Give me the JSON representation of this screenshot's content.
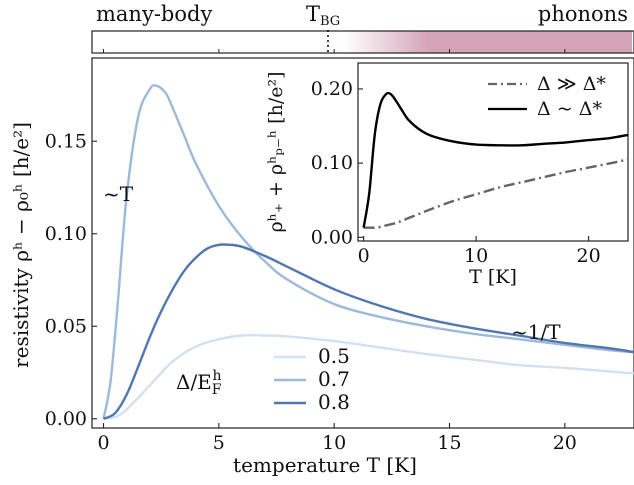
{
  "regime_bar": {
    "left_label": "many-body",
    "marker_label": "T",
    "marker_subscript": "BG",
    "right_label": "phonons",
    "shade_color": "#d4a3b6"
  },
  "chart_data": [
    {
      "type": "line",
      "xlabel": "temperature T [K]",
      "ylabel": "resistivity ρʰ − ρ₀ʰ [h/e²]",
      "xlim": [
        -0.5,
        23
      ],
      "ylim": [
        -0.005,
        0.195
      ],
      "xticks": [
        0,
        5,
        10,
        15,
        20
      ],
      "yticks": [
        0.0,
        0.05,
        0.1,
        0.15
      ],
      "xtick_labels": [
        "0",
        "5",
        "10",
        "15",
        "20"
      ],
      "ytick_labels": [
        "0.00",
        "0.05",
        "0.10",
        "0.15"
      ],
      "grid": false,
      "legend_title": "Δ/E_F^h",
      "legend_position": "lower-center",
      "annotations": [
        "~T",
        "~1/T"
      ],
      "series": [
        {
          "name": "0.5",
          "color": "#d3e0ef",
          "x": [
            0,
            0.5,
            1,
            2,
            3,
            4,
            5,
            6,
            7,
            8,
            10,
            12,
            14,
            16,
            18,
            20,
            22,
            23
          ],
          "y": [
            0.0,
            0.001,
            0.005,
            0.018,
            0.031,
            0.039,
            0.043,
            0.045,
            0.045,
            0.0445,
            0.042,
            0.0385,
            0.035,
            0.032,
            0.029,
            0.0275,
            0.0255,
            0.0245
          ]
        },
        {
          "name": "0.7",
          "color": "#9db9da",
          "x": [
            0,
            0.3,
            0.6,
            1,
            1.5,
            2,
            2.3,
            2.7,
            3,
            3.5,
            4,
            5,
            6,
            7,
            8,
            10,
            12,
            14,
            16,
            18,
            20,
            22,
            23
          ],
          "y": [
            0.0,
            0.02,
            0.06,
            0.12,
            0.163,
            0.178,
            0.18,
            0.176,
            0.168,
            0.153,
            0.138,
            0.115,
            0.098,
            0.085,
            0.075,
            0.062,
            0.055,
            0.05,
            0.046,
            0.043,
            0.04,
            0.037,
            0.036
          ]
        },
        {
          "name": "0.8",
          "color": "#5177b1",
          "x": [
            0,
            0.5,
            1,
            1.5,
            2,
            2.5,
            3,
            3.5,
            4,
            4.5,
            5,
            5.5,
            6,
            7,
            8,
            10,
            12,
            14,
            16,
            18,
            20,
            22,
            23
          ],
          "y": [
            0.0,
            0.003,
            0.013,
            0.028,
            0.044,
            0.058,
            0.07,
            0.08,
            0.087,
            0.092,
            0.094,
            0.094,
            0.093,
            0.088,
            0.082,
            0.07,
            0.061,
            0.054,
            0.049,
            0.045,
            0.041,
            0.038,
            0.036
          ]
        }
      ]
    },
    {
      "type": "line",
      "xlabel": "T [K]",
      "ylabel": "ρʰ₊ + ρʰₚ₋ʰ [h/e²]",
      "xlim": [
        -0.5,
        23.5
      ],
      "ylim": [
        -0.005,
        0.235
      ],
      "xticks": [
        0,
        10,
        20
      ],
      "yticks": [
        0.0,
        0.1,
        0.2
      ],
      "xtick_labels": [
        "0",
        "10",
        "20"
      ],
      "ytick_labels": [
        "0.00",
        "0.10",
        "0.20"
      ],
      "legend_position": "upper-right",
      "series": [
        {
          "name": "Δ ≫ Δ*",
          "style": "dashdot",
          "color": "#646470",
          "x": [
            0,
            0.5,
            1,
            1.5,
            2,
            3,
            4,
            5,
            6,
            8,
            10,
            12,
            14,
            16,
            18,
            20,
            22,
            23.5
          ],
          "y": [
            0.013,
            0.013,
            0.013,
            0.014,
            0.016,
            0.02,
            0.026,
            0.032,
            0.038,
            0.049,
            0.058,
            0.067,
            0.074,
            0.081,
            0.088,
            0.094,
            0.1,
            0.105
          ]
        },
        {
          "name": "Δ ~ Δ*",
          "style": "solid",
          "color": "#000000",
          "x": [
            0,
            0.5,
            1,
            1.5,
            2,
            2.3,
            2.6,
            3,
            3.5,
            4,
            5,
            6,
            8,
            10,
            12,
            14,
            16,
            18,
            20,
            22,
            23.5
          ],
          "y": [
            0.013,
            0.06,
            0.14,
            0.18,
            0.193,
            0.194,
            0.19,
            0.181,
            0.169,
            0.158,
            0.145,
            0.137,
            0.129,
            0.125,
            0.124,
            0.124,
            0.126,
            0.128,
            0.131,
            0.134,
            0.138
          ]
        }
      ]
    }
  ]
}
